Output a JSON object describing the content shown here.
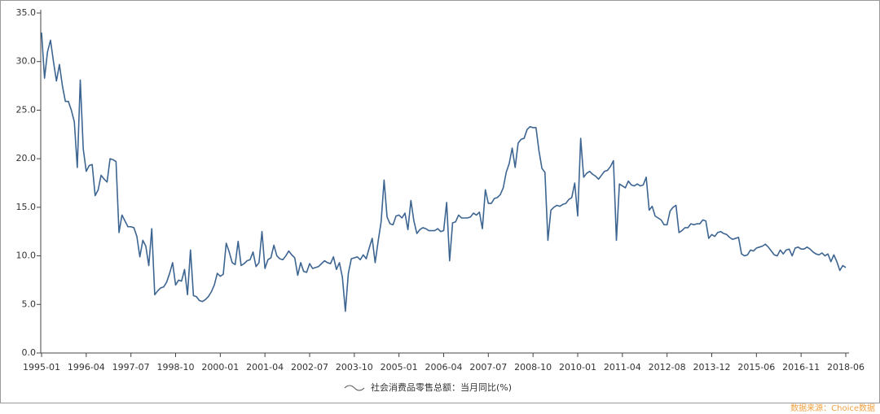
{
  "chart_data": {
    "type": "line",
    "categories": [
      "1995-01",
      null,
      null,
      null,
      null,
      null,
      null,
      null,
      null,
      null,
      null,
      null,
      null,
      null,
      null,
      "1996-04",
      null,
      null,
      null,
      null,
      null,
      null,
      null,
      null,
      null,
      null,
      null,
      null,
      null,
      null,
      "1997-07",
      null,
      null,
      null,
      null,
      null,
      null,
      null,
      null,
      null,
      null,
      null,
      null,
      null,
      null,
      "1998-10",
      null,
      null,
      null,
      null,
      null,
      null,
      null,
      null,
      null,
      null,
      null,
      null,
      null,
      null,
      "2000-01",
      null,
      null,
      null,
      null,
      null,
      null,
      null,
      null,
      null,
      null,
      null,
      null,
      null,
      null,
      "2001-04",
      null,
      null,
      null,
      null,
      null,
      null,
      null,
      null,
      null,
      null,
      null,
      null,
      null,
      null,
      "2002-07",
      null,
      null,
      null,
      null,
      null,
      null,
      null,
      null,
      null,
      null,
      null,
      null,
      null,
      null,
      "2003-10",
      null,
      null,
      null,
      null,
      null,
      null,
      null,
      null,
      null,
      null,
      null,
      null,
      null,
      null,
      "2005-01",
      null,
      null,
      null,
      null,
      null,
      null,
      null,
      null,
      null,
      null,
      null,
      null,
      null,
      null,
      "2006-04",
      null,
      null,
      null,
      null,
      null,
      null,
      null,
      null,
      null,
      null,
      null,
      null,
      null,
      null,
      "2007-07",
      null,
      null,
      null,
      null,
      null,
      null,
      null,
      null,
      null,
      null,
      null,
      null,
      null,
      null,
      "2008-10",
      null,
      null,
      null,
      null,
      null,
      null,
      null,
      null,
      null,
      null,
      null,
      null,
      null,
      null,
      "2010-01",
      null,
      null,
      null,
      null,
      null,
      null,
      null,
      null,
      null,
      null,
      null,
      null,
      null,
      null,
      "2011-04",
      null,
      null,
      null,
      null,
      null,
      null,
      null,
      null,
      null,
      null,
      null,
      null,
      null,
      null,
      "2012-08",
      null,
      null,
      null,
      null,
      null,
      null,
      null,
      null,
      null,
      null,
      null,
      null,
      null,
      null,
      "2013-12",
      null,
      null,
      null,
      null,
      null,
      null,
      null,
      null,
      null,
      null,
      null,
      null,
      null,
      null,
      "2015-06",
      null,
      null,
      null,
      null,
      null,
      null,
      null,
      null,
      null,
      null,
      null,
      null,
      null,
      null,
      "2016-11",
      null,
      null,
      null,
      null,
      null,
      null,
      null,
      null,
      null,
      null,
      null,
      null,
      null,
      null,
      "2018-06"
    ],
    "series": [
      {
        "name": "社会消费品零售总额：当月同比(%)",
        "color": "#3d6591",
        "values": [
          33,
          28.3,
          31,
          32.2,
          30,
          28,
          29.7,
          27.5,
          25.9,
          25.9,
          25,
          23.8,
          19.1,
          28.1,
          21,
          18.7,
          19.3,
          19.4,
          16.2,
          16.8,
          18.3,
          17.9,
          17.6,
          20,
          19.9,
          19.7,
          12.4,
          14.2,
          13.6,
          13,
          13,
          12.9,
          12,
          9.9,
          11.6,
          11,
          9,
          12.8,
          6,
          6.4,
          6.7,
          6.8,
          7.3,
          8.2,
          9.3,
          7,
          7.5,
          7.4,
          8.6,
          6,
          10.6,
          5.9,
          5.8,
          5.4,
          5.3,
          5.5,
          5.8,
          6.3,
          7,
          8.2,
          7.9,
          8.1,
          11.3,
          10.4,
          9.3,
          9.1,
          11.5,
          9,
          9.2,
          9.5,
          9.6,
          10.4,
          8.9,
          9.3,
          12.5,
          8.7,
          9.6,
          9.8,
          11.1,
          10,
          9.7,
          9.6,
          10,
          10.5,
          10.1,
          9.8,
          8,
          9.3,
          8.4,
          8.3,
          9.2,
          8.7,
          8.8,
          8.9,
          9.2,
          9.5,
          9.3,
          9.2,
          9.9,
          8.6,
          9.3,
          7.8,
          4.3,
          8.2,
          9.7,
          9.8,
          9.9,
          9.6,
          10.1,
          9.7,
          10.8,
          11.8,
          9.3,
          11.5,
          13.5,
          17.8,
          14,
          13.3,
          13.2,
          14.1,
          14.2,
          13.9,
          14.4,
          12.7,
          15.7,
          13.6,
          12.3,
          12.7,
          12.9,
          12.8,
          12.6,
          12.6,
          12.6,
          12.8,
          12.5,
          12.6,
          15.5,
          9.5,
          13.4,
          13.5,
          14.2,
          13.9,
          13.9,
          13.9,
          14,
          14.4,
          14.2,
          14.5,
          12.8,
          16.8,
          15.4,
          15.4,
          15.9,
          16,
          16.3,
          17,
          18.6,
          19.5,
          21.1,
          19.1,
          21.6,
          22,
          22.1,
          23,
          23.3,
          23.2,
          23.2,
          20.8,
          19,
          18.6,
          11.6,
          14.7,
          15,
          15.2,
          15.1,
          15.3,
          15.4,
          15.8,
          16,
          17.5,
          14.1,
          22.1,
          18.1,
          18.5,
          18.7,
          18.4,
          18.2,
          17.9,
          18.3,
          18.7,
          18.8,
          19.2,
          19.8,
          11.6,
          17.4,
          17.2,
          17,
          17.7,
          17.3,
          17.2,
          17.4,
          17.2,
          17.3,
          18.1,
          14.7,
          15.1,
          14.1,
          13.9,
          13.7,
          13.2,
          13.2,
          14.6,
          15,
          15.2,
          12.4,
          12.6,
          12.9,
          12.9,
          13.3,
          13.2,
          13.3,
          13.3,
          13.7,
          13.6,
          11.8,
          12.2,
          12,
          12.4,
          12.5,
          12.3,
          12.2,
          11.9,
          11.7,
          11.8,
          11.9,
          10.2,
          10,
          10.1,
          10.6,
          10.5,
          10.8,
          10.9,
          11,
          11.2,
          10.9,
          10.5,
          10.1,
          10,
          10.6,
          10.2,
          10.6,
          10.7,
          10,
          10.8,
          10.9,
          10.7,
          10.7,
          10.9,
          10.7,
          10.4,
          10.2,
          10.1,
          10.3,
          10,
          10.2,
          9.4,
          10.1,
          9.4,
          8.5,
          9,
          8.8
        ]
      }
    ],
    "ylim": [
      0,
      35
    ],
    "yticks": [
      {
        "value": 0,
        "label": "0.0"
      },
      {
        "value": 5,
        "label": "5.0"
      },
      {
        "value": 10,
        "label": "10.0"
      },
      {
        "value": 15,
        "label": "15.0"
      },
      {
        "value": 20,
        "label": "20.0"
      },
      {
        "value": 25,
        "label": "25.0"
      },
      {
        "value": 30,
        "label": "30.0"
      },
      {
        "value": 35,
        "label": "35.0"
      }
    ],
    "grid": false,
    "source": "数据来源：Choice数据"
  }
}
